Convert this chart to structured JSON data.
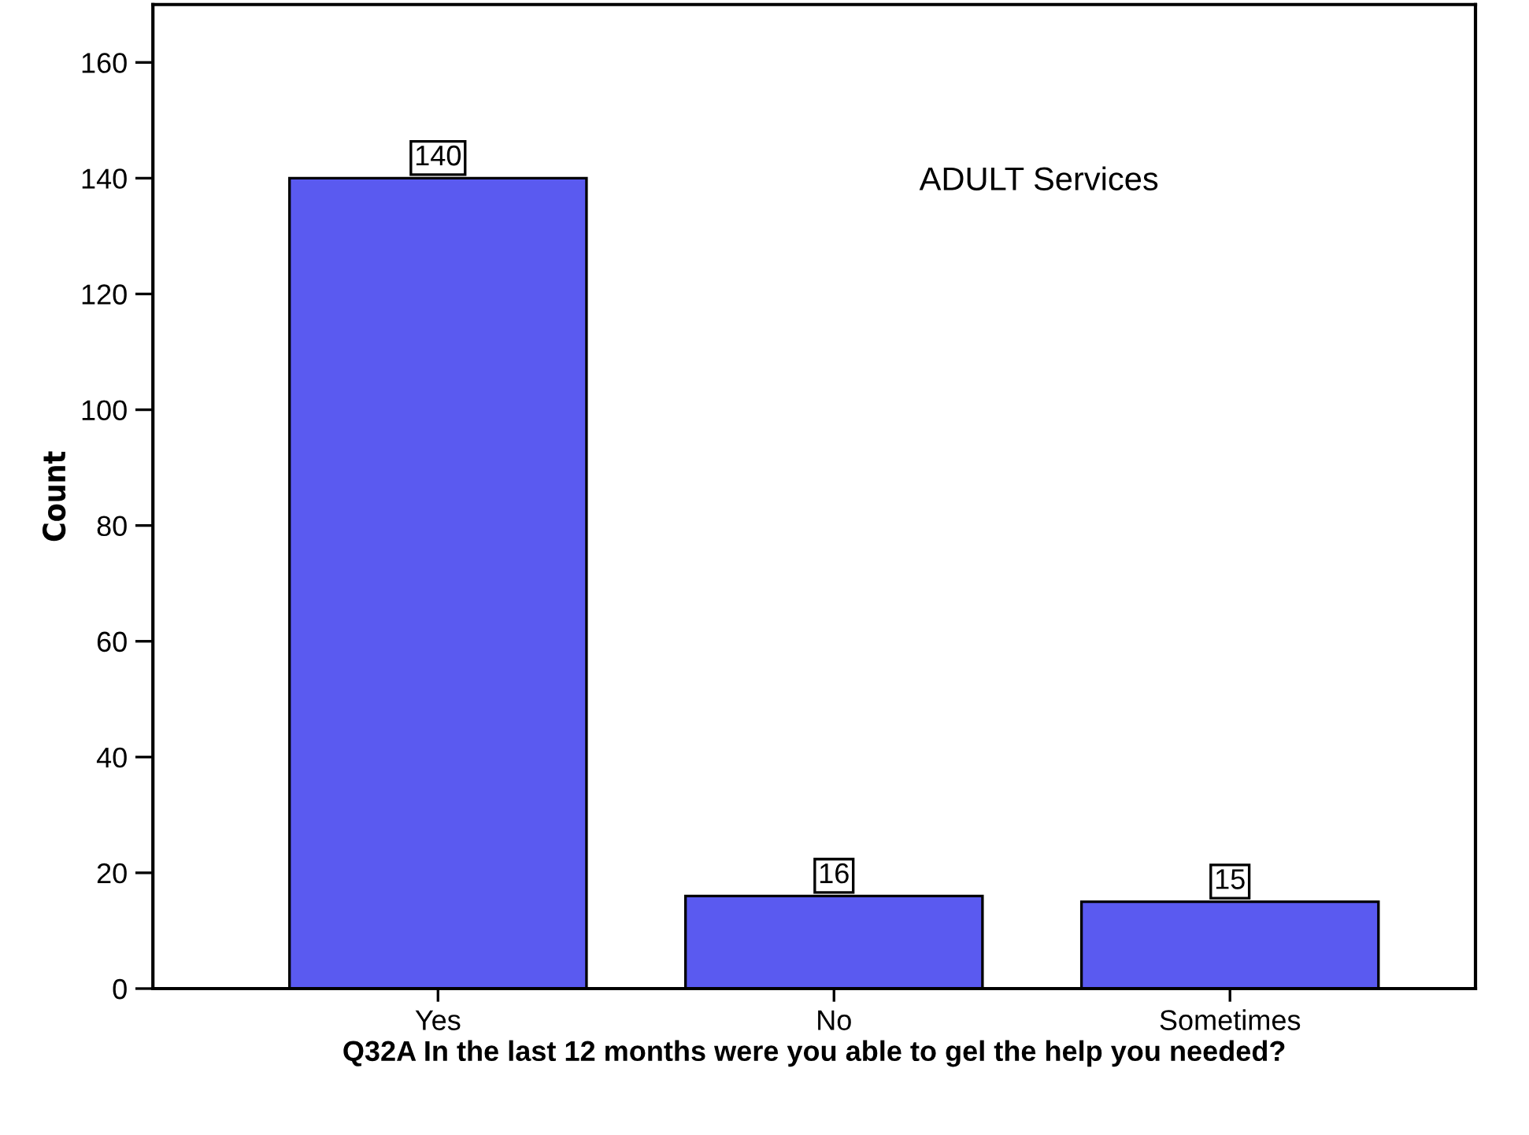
{
  "chart_data": {
    "type": "bar",
    "xlabel": "Q32A In the last 12 months were you able to gel the help you needed?",
    "ylabel": "Count",
    "categories": [
      "Yes",
      "No",
      "Sometimes"
    ],
    "values": [
      140,
      16,
      15
    ],
    "color": "#5a5af0",
    "ylim": [
      0,
      170
    ],
    "yticks": [
      0,
      20,
      40,
      60,
      80,
      100,
      120,
      140,
      160
    ],
    "data_labels": true,
    "grid": false,
    "legend": false,
    "annotations": [
      "ADULT Services"
    ]
  }
}
